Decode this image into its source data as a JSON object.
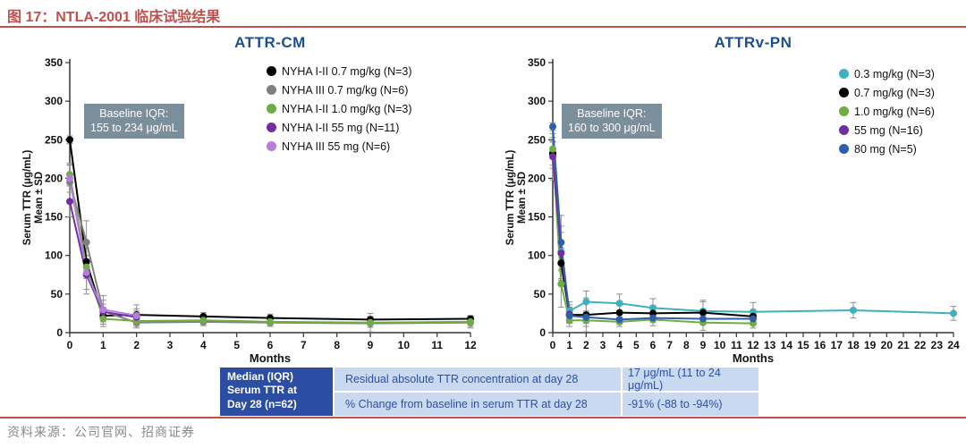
{
  "header": {
    "title": "图 17：NTLA-2001 临床试验结果"
  },
  "source": "资料来源：公司官网、招商证券",
  "colors": {
    "accent_red": "#C0504D",
    "chart_title_blue": "#1F4E8F",
    "baseline_box_bg": "#7A8E9C",
    "table_header_bg": "#2B4EA2",
    "table_row_bg": "#C9D9F0",
    "table_text_blue": "#2B50A8",
    "error_bar_gray": "#8f8f8f"
  },
  "table": {
    "header_lines": [
      "Median (IQR)",
      "Serum TTR at",
      "Day 28 (n=62)"
    ],
    "rows": [
      {
        "label": "Residual absolute TTR concentration at day 28",
        "value": "17 μg/mL (11 to 24 μg/mL)"
      },
      {
        "label": "% Change from baseline in serum TTR at day 28",
        "value": "-91% (-88 to -94%)"
      }
    ]
  },
  "chart_data": [
    {
      "type": "line",
      "title": "ATTR-CM",
      "xlabel": "Months",
      "ylabel_lines": [
        "Serum TTR (μg/mL)",
        "Mean ± SD"
      ],
      "xlim": [
        0,
        12
      ],
      "ylim": [
        0,
        350
      ],
      "xtick_step": 1,
      "ytick_step": 50,
      "grid": false,
      "legend_position": "upper-right",
      "baseline_box": [
        "Baseline IQR:",
        "155 to 234 μg/mL"
      ],
      "series": [
        {
          "name": "NYHA I-II 0.7 mg/kg (N=3)",
          "color": "#000000",
          "x": [
            0,
            0.5,
            1,
            2,
            4,
            6,
            9,
            12
          ],
          "y": [
            250,
            92,
            22,
            23,
            21,
            19,
            17,
            18
          ],
          "err": [
            5,
            18,
            8,
            8,
            5,
            5,
            4,
            4
          ]
        },
        {
          "name": "NYHA III 0.7 mg/kg (N=6)",
          "color": "#808080",
          "x": [
            0,
            0.5,
            1,
            2,
            4,
            6,
            9,
            12
          ],
          "y": [
            195,
            117,
            28,
            13,
            14,
            13,
            12,
            13
          ],
          "err": [
            25,
            28,
            20,
            7,
            5,
            5,
            5,
            5
          ]
        },
        {
          "name": "NYHA I-II 1.0 mg/kg (N=3)",
          "color": "#6FAC46",
          "x": [
            0,
            0.5,
            1,
            2,
            4,
            6,
            9,
            12
          ],
          "y": [
            205,
            85,
            18,
            15,
            16,
            14,
            13,
            14
          ],
          "err": [
            12,
            15,
            7,
            5,
            5,
            4,
            12,
            8
          ]
        },
        {
          "name": "NYHA I-II 55 mg (N=11)",
          "color": "#7030A0",
          "x": [
            0,
            0.5,
            1,
            2
          ],
          "y": [
            170,
            75,
            27,
            20
          ],
          "err": [
            20,
            25,
            10,
            8
          ]
        },
        {
          "name": "NYHA III 55 mg (N=6)",
          "color": "#B37EDC",
          "x": [
            0,
            0.5,
            1,
            2
          ],
          "y": [
            200,
            78,
            30,
            22
          ],
          "err": [
            18,
            22,
            12,
            14
          ]
        }
      ]
    },
    {
      "type": "line",
      "title": "ATTRv-PN",
      "xlabel": "Months",
      "ylabel_lines": [
        "Serum TTR (μg/mL)",
        "Mean ± SD"
      ],
      "xlim": [
        0,
        24
      ],
      "ylim": [
        0,
        350
      ],
      "xtick_step": 1,
      "ytick_step": 50,
      "grid": false,
      "legend_position": "upper-right",
      "baseline_box": [
        "Baseline IQR:",
        "160 to 300 μg/mL"
      ],
      "series": [
        {
          "name": "0.3 mg/kg (N=3)",
          "color": "#3FB0C0",
          "x": [
            0,
            0.5,
            1,
            2,
            4,
            6,
            9,
            12,
            18,
            24
          ],
          "y": [
            233,
            105,
            28,
            40,
            38,
            32,
            28,
            27,
            29,
            25
          ],
          "err": [
            20,
            25,
            12,
            14,
            12,
            12,
            14,
            12,
            10,
            9
          ]
        },
        {
          "name": "0.7 mg/kg (N=3)",
          "color": "#000000",
          "x": [
            0,
            0.5,
            1,
            2,
            4,
            6,
            9,
            12
          ],
          "y": [
            232,
            90,
            23,
            23,
            26,
            25,
            26,
            21
          ],
          "err": [
            15,
            20,
            10,
            22,
            10,
            10,
            14,
            8
          ]
        },
        {
          "name": "1.0 mg/kg (N=6)",
          "color": "#6FAC46",
          "x": [
            0,
            0.5,
            1,
            2,
            4,
            6,
            9,
            12
          ],
          "y": [
            238,
            63,
            16,
            16,
            14,
            17,
            13,
            12
          ],
          "err": [
            10,
            30,
            8,
            8,
            6,
            8,
            10,
            6
          ]
        },
        {
          "name": "55 mg (N=16)",
          "color": "#7030A0",
          "x": [
            0,
            0.5,
            1
          ],
          "y": [
            228,
            103,
            24
          ],
          "err": [
            30,
            35,
            12
          ]
        },
        {
          "name": "80 mg (N=5)",
          "color": "#2F5FA8",
          "x": [
            0,
            0.5,
            1,
            2,
            4,
            6,
            9,
            12
          ],
          "y": [
            267,
            117,
            22,
            20,
            17,
            19,
            18,
            18
          ],
          "err": [
            5,
            35,
            10,
            8,
            6,
            6,
            6,
            6
          ]
        }
      ]
    }
  ]
}
